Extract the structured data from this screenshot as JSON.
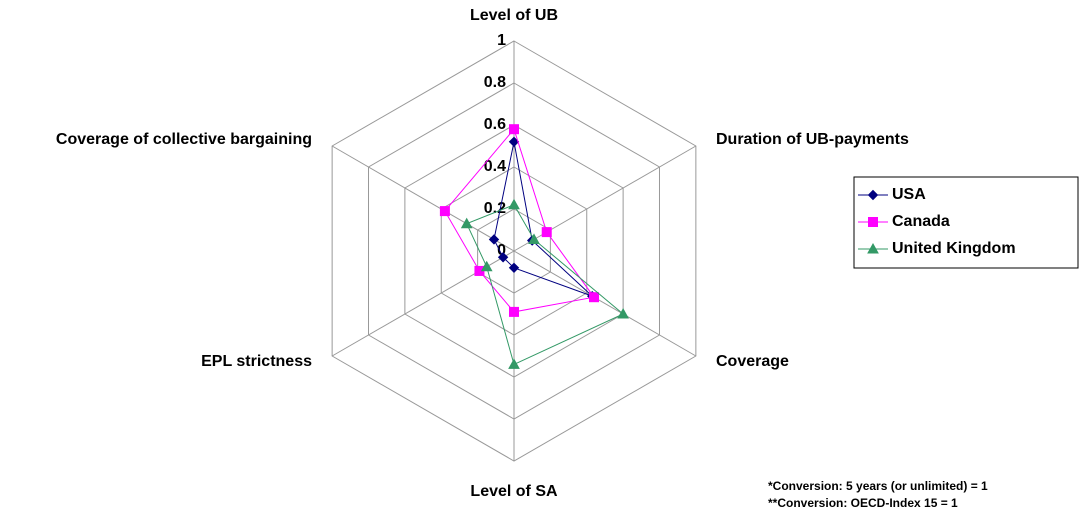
{
  "chart_data": {
    "type": "radar",
    "categories": [
      "Level of UB",
      "Duration of UB-payments",
      "Coverage",
      "Level of SA",
      "EPL strictness",
      "Coverage of collective bargaining"
    ],
    "series": [
      {
        "name": "USA",
        "color": "#000080",
        "marker": "diamond",
        "values": [
          0.52,
          0.1,
          0.43,
          0.08,
          0.06,
          0.11
        ]
      },
      {
        "name": "Canada",
        "color": "#ff00ff",
        "marker": "square",
        "values": [
          0.58,
          0.18,
          0.44,
          0.29,
          0.19,
          0.38
        ]
      },
      {
        "name": "United Kingdom",
        "color": "#339966",
        "marker": "triangle",
        "values": [
          0.22,
          0.11,
          0.6,
          0.54,
          0.15,
          0.26
        ]
      }
    ],
    "ylim": [
      0,
      1
    ],
    "yticks": [
      0,
      0.2,
      0.4,
      0.6,
      0.8,
      1
    ],
    "grid": true,
    "legend": "right",
    "notes": [
      "*Conversion: 5 years (or unlimited) = 1",
      "**Conversion: OECD-Index 15 = 1"
    ]
  }
}
